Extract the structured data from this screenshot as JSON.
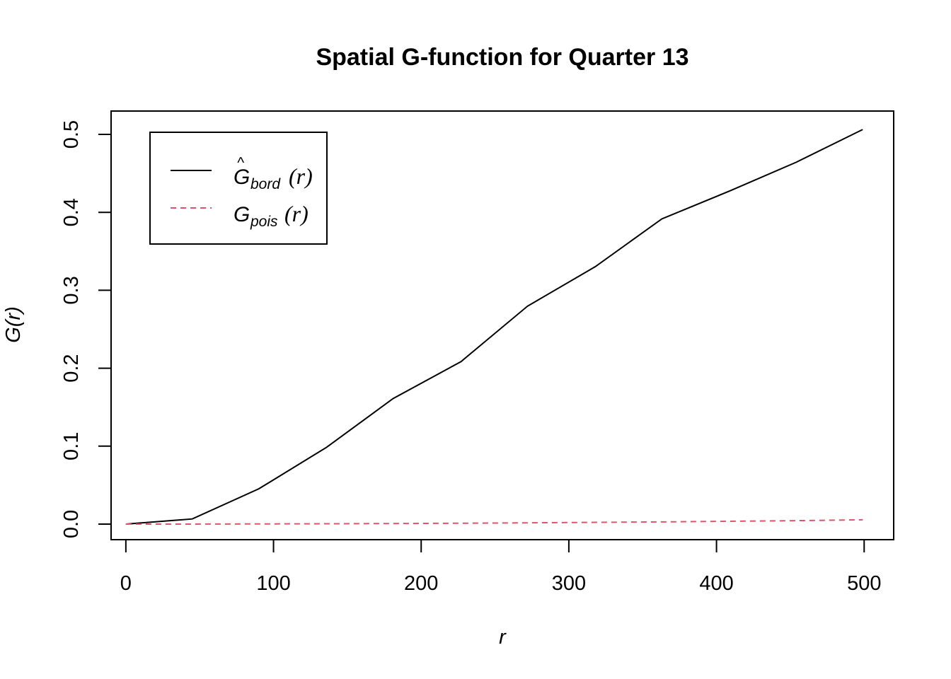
{
  "chart_data": {
    "type": "line",
    "title": "Spatial G-function for Quarter 13",
    "xlabel": "r",
    "ylabel": "G(r)",
    "xlim": [
      -10,
      520
    ],
    "ylim": [
      -0.02,
      0.53
    ],
    "xticks": [
      0,
      100,
      200,
      300,
      400,
      500
    ],
    "yticks": [
      0.0,
      0.1,
      0.2,
      0.3,
      0.4,
      0.5
    ],
    "xtick_labels": [
      "0",
      "100",
      "200",
      "300",
      "400",
      "500"
    ],
    "ytick_labels": [
      "0.0",
      "0.1",
      "0.2",
      "0.3",
      "0.4",
      "0.5"
    ],
    "grid": false,
    "legend_position": "top-left",
    "series": [
      {
        "key": "bord",
        "legend_main": "G",
        "legend_hat": "^",
        "legend_sub": "bord",
        "legend_arg": "(r)",
        "color": "#000000",
        "dash": "solid",
        "x": [
          0,
          45,
          90,
          136,
          181,
          227,
          272,
          318,
          363,
          409,
          454,
          499
        ],
        "y": [
          0.0,
          0.0066,
          0.0452,
          0.0986,
          0.1611,
          0.2085,
          0.2796,
          0.3304,
          0.3916,
          0.4275,
          0.4643,
          0.5063
        ]
      },
      {
        "key": "pois",
        "legend_main": "G",
        "legend_hat": "",
        "legend_sub": "pois",
        "legend_arg": "(r)",
        "color": "#df536b",
        "dash": "dashed",
        "x": [
          0,
          45,
          90,
          136,
          181,
          227,
          272,
          318,
          363,
          409,
          454,
          499
        ],
        "y": [
          0.0,
          0.0,
          0.0002,
          0.0004,
          0.0007,
          0.0011,
          0.0016,
          0.0022,
          0.0028,
          0.0036,
          0.0044,
          0.0055
        ]
      }
    ]
  }
}
